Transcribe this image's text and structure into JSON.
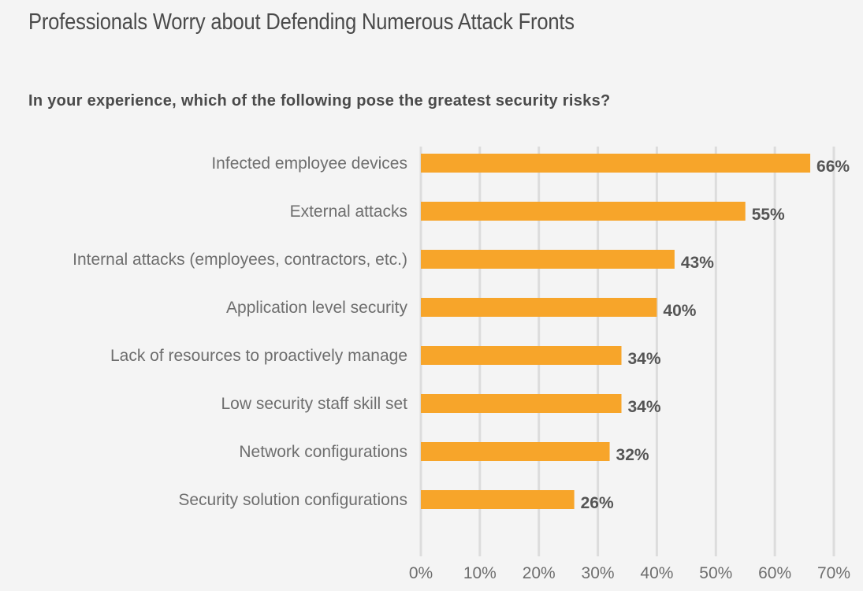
{
  "header": {
    "title": "Professionals Worry about Defending Numerous Attack Fronts"
  },
  "chart_data": {
    "type": "bar",
    "orientation": "horizontal",
    "title": "In your experience, which of the following pose the greatest security risks?",
    "categories": [
      "Infected employee devices",
      "External attacks",
      "Internal attacks (employees, contractors, etc.)",
      "Application level security",
      "Lack of resources to proactively manage",
      "Low security staff skill set",
      "Network configurations",
      "Security solution configurations"
    ],
    "values": [
      66,
      55,
      43,
      40,
      34,
      34,
      32,
      26
    ],
    "value_labels": [
      "66%",
      "55%",
      "43%",
      "40%",
      "34%",
      "34%",
      "32%",
      "26%"
    ],
    "xlim": [
      0,
      70
    ],
    "xticks": [
      0,
      10,
      20,
      30,
      40,
      50,
      60,
      70
    ],
    "xtick_labels": [
      "0%",
      "10%",
      "20%",
      "30%",
      "40%",
      "50%",
      "60%",
      "70%"
    ],
    "grid": true,
    "bar_color": "#f7a52a",
    "xlabel": "",
    "ylabel": ""
  }
}
